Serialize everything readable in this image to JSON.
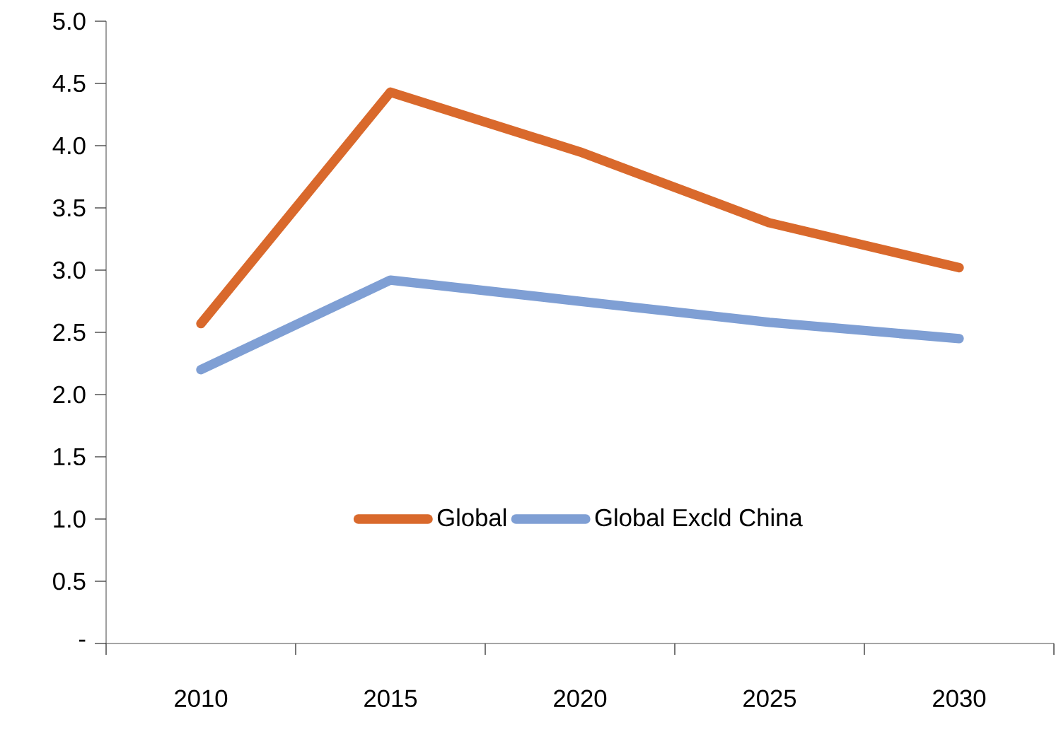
{
  "chart_data": {
    "type": "line",
    "categories": [
      "2010",
      "2015",
      "2020",
      "2025",
      "2030"
    ],
    "series": [
      {
        "name": "Global",
        "color": "#d9692c",
        "values": [
          2.57,
          4.43,
          3.95,
          3.38,
          3.02
        ]
      },
      {
        "name": "Global Excld China",
        "color": "#7f9fd4",
        "values": [
          2.2,
          2.92,
          2.75,
          2.58,
          2.45
        ]
      }
    ],
    "ylim": [
      0,
      5
    ],
    "yticks": [
      {
        "value": 0,
        "label": "-"
      },
      0.5,
      {
        "value": 1,
        "label": "1.0"
      },
      1.5,
      {
        "value": 2,
        "label": "2.0"
      },
      2.5,
      {
        "value": 3,
        "label": "3.0"
      },
      3.5,
      {
        "value": 4,
        "label": "4.0"
      },
      4.5,
      {
        "value": 5,
        "label": "5.0"
      }
    ],
    "grid": false,
    "legend": "bottom",
    "marker": "none",
    "line_style": "solid"
  }
}
